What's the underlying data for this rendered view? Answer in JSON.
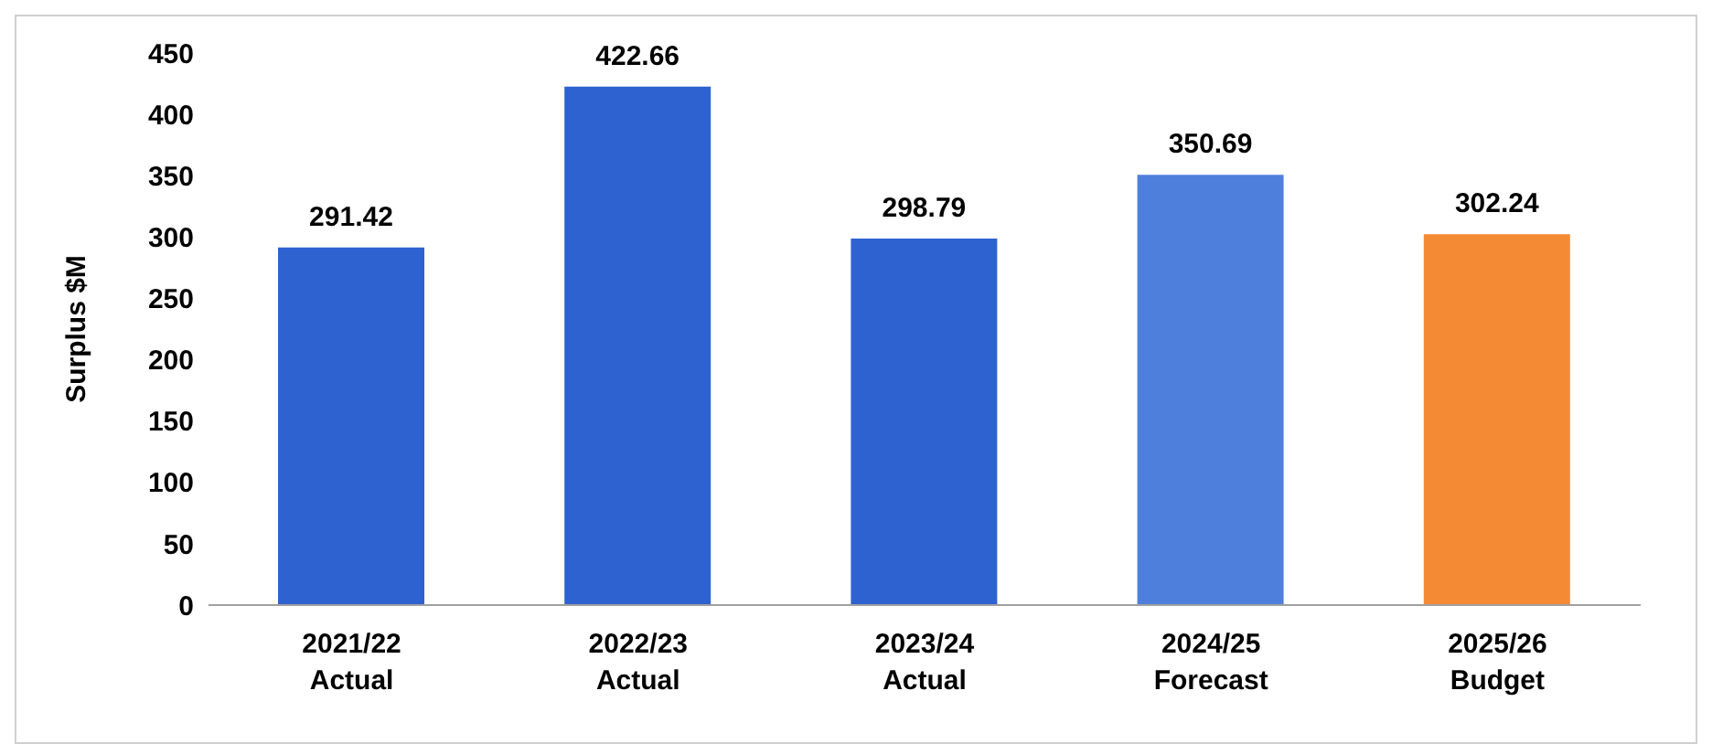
{
  "chart_data": {
    "type": "bar",
    "ylabel": "Surplus $M",
    "categories": [
      "2021/22\nActual",
      "2022/23\nActual",
      "2023/24\nActual",
      "2024/25\nForecast",
      "2025/26\nBudget"
    ],
    "values": [
      291.42,
      422.66,
      298.79,
      350.69,
      302.24
    ],
    "colors": [
      "#2e62d0",
      "#2e62d0",
      "#2e62d0",
      "#4f7fdc",
      "#f58a35"
    ],
    "ylim": [
      0,
      450
    ],
    "yticks": [
      0,
      50,
      100,
      150,
      200,
      250,
      300,
      350,
      400,
      450
    ],
    "data_labels": true,
    "grid": false,
    "legend": false
  }
}
